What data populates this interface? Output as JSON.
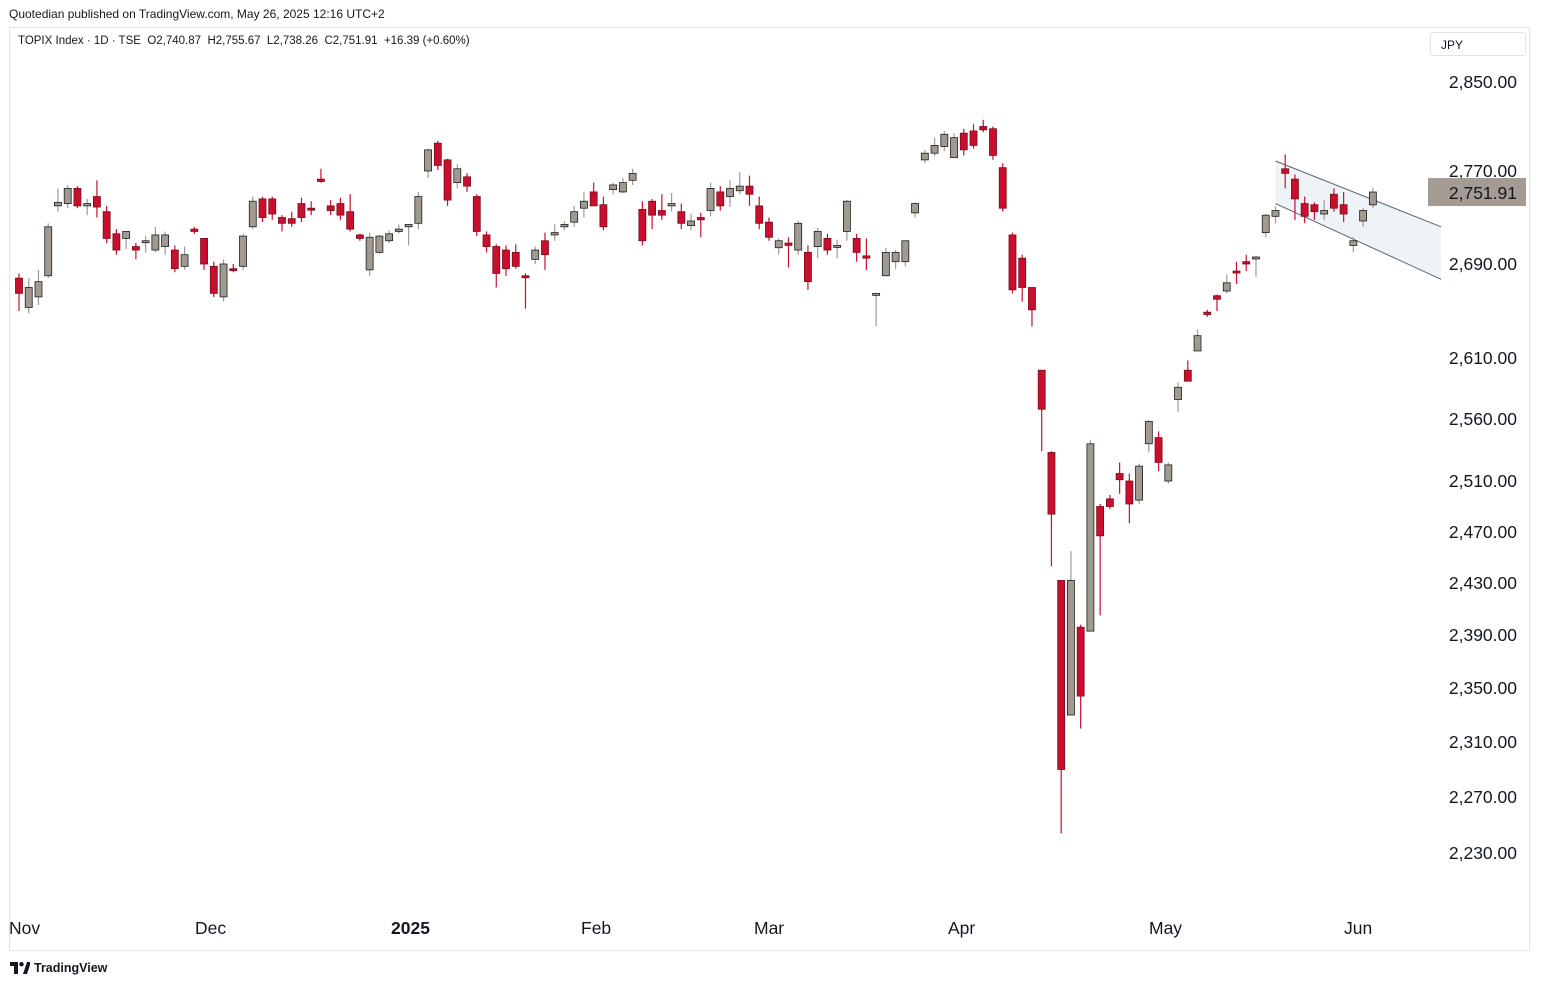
{
  "header": {
    "publisher_text": "Quotedian published on TradingView.com, May 26, 2025 12:16 UTC+2"
  },
  "legend": {
    "symbol": "TOPIX Index · 1D · TSE",
    "open": "O2,740.87",
    "high": "H2,755.67",
    "low": "L2,738.26",
    "close": "C2,751.91",
    "change": "+16.39 (+0.60%)"
  },
  "currency_button": "JPY",
  "footer": {
    "brand": "TradingView"
  },
  "colors": {
    "up": "#a09a91",
    "down": "#c8102e",
    "channel_fill": "#eef3f8",
    "channel_line": "#5d6470",
    "price_label_bg": "#a49b92"
  },
  "chart_data": {
    "type": "candlestick",
    "title": "TOPIX Index",
    "interval": "1D",
    "exchange": "TSE",
    "currency": "JPY",
    "y_axis": {
      "position": "right",
      "ticks": [
        2850,
        2770,
        2690,
        2610,
        2560,
        2510,
        2470,
        2430,
        2390,
        2350,
        2310,
        2270,
        2230
      ],
      "tick_labels": [
        "2,850.00",
        "2,770.00",
        "2,690.00",
        "2,610.00",
        "2,560.00",
        "2,510.00",
        "2,470.00",
        "2,430.00",
        "2,390.00",
        "2,350.00",
        "2,310.00",
        "2,270.00",
        "2,230.00"
      ],
      "last_price": 2751.91,
      "last_price_label": "2,751.91"
    },
    "x_axis": {
      "labels": [
        {
          "text": "Nov",
          "date": "2024-11-01",
          "bold": false
        },
        {
          "text": "Dec",
          "date": "2024-12-02",
          "bold": false
        },
        {
          "text": "2025",
          "date": "2025-01-06",
          "bold": true
        },
        {
          "text": "Feb",
          "date": "2025-02-03",
          "bold": false
        },
        {
          "text": "Mar",
          "date": "2025-03-03",
          "bold": false
        },
        {
          "text": "Apr",
          "date": "2025-04-01",
          "bold": false
        },
        {
          "text": "May",
          "date": "2025-05-01",
          "bold": false
        },
        {
          "text": "Jun",
          "date": "2025-06-02",
          "bold": false
        }
      ]
    },
    "candles": [
      {
        "date": "2024-11-01",
        "o": 2678,
        "h": 2682,
        "l": 2650,
        "c": 2665
      },
      {
        "date": "2024-11-05",
        "o": 2653,
        "h": 2678,
        "l": 2648,
        "c": 2670
      },
      {
        "date": "2024-11-06",
        "o": 2662,
        "h": 2685,
        "l": 2655,
        "c": 2675
      },
      {
        "date": "2024-11-07",
        "o": 2680,
        "h": 2725,
        "l": 2678,
        "c": 2722
      },
      {
        "date": "2024-11-08",
        "o": 2740,
        "h": 2755,
        "l": 2735,
        "c": 2743
      },
      {
        "date": "2024-11-11",
        "o": 2742,
        "h": 2758,
        "l": 2738,
        "c": 2755
      },
      {
        "date": "2024-11-12",
        "o": 2755,
        "h": 2757,
        "l": 2738,
        "c": 2740
      },
      {
        "date": "2024-11-13",
        "o": 2740,
        "h": 2746,
        "l": 2732,
        "c": 2742
      },
      {
        "date": "2024-11-14",
        "o": 2748,
        "h": 2762,
        "l": 2730,
        "c": 2739
      },
      {
        "date": "2024-11-15",
        "o": 2735,
        "h": 2740,
        "l": 2708,
        "c": 2712
      },
      {
        "date": "2024-11-18",
        "o": 2716,
        "h": 2720,
        "l": 2698,
        "c": 2702
      },
      {
        "date": "2024-11-19",
        "o": 2712,
        "h": 2718,
        "l": 2703,
        "c": 2718
      },
      {
        "date": "2024-11-20",
        "o": 2705,
        "h": 2708,
        "l": 2694,
        "c": 2702
      },
      {
        "date": "2024-11-21",
        "o": 2710,
        "h": 2714,
        "l": 2700,
        "c": 2710
      },
      {
        "date": "2024-11-22",
        "o": 2702,
        "h": 2722,
        "l": 2700,
        "c": 2715
      },
      {
        "date": "2024-11-25",
        "o": 2705,
        "h": 2718,
        "l": 2698,
        "c": 2715
      },
      {
        "date": "2024-11-26",
        "o": 2702,
        "h": 2706,
        "l": 2683,
        "c": 2686
      },
      {
        "date": "2024-11-27",
        "o": 2688,
        "h": 2705,
        "l": 2685,
        "c": 2698
      },
      {
        "date": "2024-11-28",
        "o": 2720,
        "h": 2722,
        "l": 2716,
        "c": 2718
      },
      {
        "date": "2024-11-29",
        "o": 2712,
        "h": 2712,
        "l": 2685,
        "c": 2690
      },
      {
        "date": "2024-12-02",
        "o": 2688,
        "h": 2692,
        "l": 2662,
        "c": 2665
      },
      {
        "date": "2024-12-03",
        "o": 2662,
        "h": 2694,
        "l": 2658,
        "c": 2690
      },
      {
        "date": "2024-12-04",
        "o": 2686,
        "h": 2690,
        "l": 2683,
        "c": 2685
      },
      {
        "date": "2024-12-05",
        "o": 2688,
        "h": 2716,
        "l": 2685,
        "c": 2714
      },
      {
        "date": "2024-12-06",
        "o": 2722,
        "h": 2748,
        "l": 2720,
        "c": 2744
      },
      {
        "date": "2024-12-09",
        "o": 2746,
        "h": 2748,
        "l": 2726,
        "c": 2730
      },
      {
        "date": "2024-12-10",
        "o": 2746,
        "h": 2748,
        "l": 2728,
        "c": 2733
      },
      {
        "date": "2024-12-11",
        "o": 2730,
        "h": 2732,
        "l": 2718,
        "c": 2725
      },
      {
        "date": "2024-12-12",
        "o": 2729,
        "h": 2735,
        "l": 2722,
        "c": 2725
      },
      {
        "date": "2024-12-13",
        "o": 2742,
        "h": 2747,
        "l": 2726,
        "c": 2730
      },
      {
        "date": "2024-12-16",
        "o": 2738,
        "h": 2744,
        "l": 2732,
        "c": 2737
      },
      {
        "date": "2024-12-17",
        "o": 2763,
        "h": 2772,
        "l": 2760,
        "c": 2761
      },
      {
        "date": "2024-12-18",
        "o": 2740,
        "h": 2745,
        "l": 2732,
        "c": 2736
      },
      {
        "date": "2024-12-19",
        "o": 2742,
        "h": 2747,
        "l": 2728,
        "c": 2732
      },
      {
        "date": "2024-12-20",
        "o": 2735,
        "h": 2750,
        "l": 2718,
        "c": 2720
      },
      {
        "date": "2024-12-23",
        "o": 2715,
        "h": 2716,
        "l": 2710,
        "c": 2712
      },
      {
        "date": "2024-12-24",
        "o": 2685,
        "h": 2717,
        "l": 2680,
        "c": 2713
      },
      {
        "date": "2024-12-25",
        "o": 2700,
        "h": 2715,
        "l": 2699,
        "c": 2714
      },
      {
        "date": "2024-12-26",
        "o": 2710,
        "h": 2719,
        "l": 2708,
        "c": 2716
      },
      {
        "date": "2024-12-27",
        "o": 2718,
        "h": 2724,
        "l": 2716,
        "c": 2720
      },
      {
        "date": "2024-12-30",
        "o": 2722,
        "h": 2724,
        "l": 2706,
        "c": 2724
      },
      {
        "date": "2025-01-06",
        "o": 2725,
        "h": 2752,
        "l": 2720,
        "c": 2748
      },
      {
        "date": "2025-01-07",
        "o": 2770,
        "h": 2790,
        "l": 2764,
        "c": 2789
      },
      {
        "date": "2025-01-08",
        "o": 2795,
        "h": 2797,
        "l": 2771,
        "c": 2775
      },
      {
        "date": "2025-01-09",
        "o": 2780,
        "h": 2781,
        "l": 2740,
        "c": 2745
      },
      {
        "date": "2025-01-10",
        "o": 2760,
        "h": 2776,
        "l": 2755,
        "c": 2772
      },
      {
        "date": "2025-01-14",
        "o": 2765,
        "h": 2768,
        "l": 2752,
        "c": 2757
      },
      {
        "date": "2025-01-15",
        "o": 2748,
        "h": 2750,
        "l": 2714,
        "c": 2718
      },
      {
        "date": "2025-01-16",
        "o": 2715,
        "h": 2718,
        "l": 2700,
        "c": 2705
      },
      {
        "date": "2025-01-17",
        "o": 2705,
        "h": 2707,
        "l": 2670,
        "c": 2682
      },
      {
        "date": "2025-01-20",
        "o": 2702,
        "h": 2706,
        "l": 2680,
        "c": 2686
      },
      {
        "date": "2025-01-21",
        "o": 2700,
        "h": 2707,
        "l": 2686,
        "c": 2688
      },
      {
        "date": "2025-01-22",
        "o": 2680,
        "h": 2682,
        "l": 2652,
        "c": 2679
      },
      {
        "date": "2025-01-23",
        "o": 2694,
        "h": 2705,
        "l": 2690,
        "c": 2702
      },
      {
        "date": "2025-01-24",
        "o": 2710,
        "h": 2717,
        "l": 2685,
        "c": 2698
      },
      {
        "date": "2025-01-27",
        "o": 2715,
        "h": 2724,
        "l": 2710,
        "c": 2717
      },
      {
        "date": "2025-01-28",
        "o": 2722,
        "h": 2727,
        "l": 2719,
        "c": 2724
      },
      {
        "date": "2025-01-29",
        "o": 2726,
        "h": 2740,
        "l": 2722,
        "c": 2735
      },
      {
        "date": "2025-01-30",
        "o": 2738,
        "h": 2752,
        "l": 2730,
        "c": 2744
      },
      {
        "date": "2025-01-31",
        "o": 2752,
        "h": 2760,
        "l": 2741,
        "c": 2740
      },
      {
        "date": "2025-02-03",
        "o": 2741,
        "h": 2748,
        "l": 2719,
        "c": 2722
      },
      {
        "date": "2025-02-04",
        "o": 2754,
        "h": 2760,
        "l": 2750,
        "c": 2758
      },
      {
        "date": "2025-02-05",
        "o": 2752,
        "h": 2764,
        "l": 2751,
        "c": 2760
      },
      {
        "date": "2025-02-06",
        "o": 2762,
        "h": 2772,
        "l": 2758,
        "c": 2768
      },
      {
        "date": "2025-02-07",
        "o": 2737,
        "h": 2744,
        "l": 2706,
        "c": 2710
      },
      {
        "date": "2025-02-10",
        "o": 2744,
        "h": 2746,
        "l": 2720,
        "c": 2732
      },
      {
        "date": "2025-02-12",
        "o": 2736,
        "h": 2750,
        "l": 2728,
        "c": 2732
      },
      {
        "date": "2025-02-13",
        "o": 2740,
        "h": 2751,
        "l": 2735,
        "c": 2742
      },
      {
        "date": "2025-02-14",
        "o": 2735,
        "h": 2742,
        "l": 2720,
        "c": 2725
      },
      {
        "date": "2025-02-17",
        "o": 2723,
        "h": 2733,
        "l": 2719,
        "c": 2727
      },
      {
        "date": "2025-02-18",
        "o": 2730,
        "h": 2734,
        "l": 2713,
        "c": 2728
      },
      {
        "date": "2025-02-19",
        "o": 2736,
        "h": 2760,
        "l": 2731,
        "c": 2755
      },
      {
        "date": "2025-02-20",
        "o": 2752,
        "h": 2757,
        "l": 2736,
        "c": 2740
      },
      {
        "date": "2025-02-21",
        "o": 2748,
        "h": 2762,
        "l": 2739,
        "c": 2755
      },
      {
        "date": "2025-02-25",
        "o": 2753,
        "h": 2769,
        "l": 2750,
        "c": 2757
      },
      {
        "date": "2025-02-26",
        "o": 2757,
        "h": 2766,
        "l": 2740,
        "c": 2750
      },
      {
        "date": "2025-02-27",
        "o": 2740,
        "h": 2748,
        "l": 2720,
        "c": 2725
      },
      {
        "date": "2025-02-28",
        "o": 2726,
        "h": 2730,
        "l": 2710,
        "c": 2713
      },
      {
        "date": "2025-03-03",
        "o": 2704,
        "h": 2712,
        "l": 2698,
        "c": 2710
      },
      {
        "date": "2025-03-04",
        "o": 2708,
        "h": 2713,
        "l": 2687,
        "c": 2706
      },
      {
        "date": "2025-03-05",
        "o": 2702,
        "h": 2727,
        "l": 2698,
        "c": 2725
      },
      {
        "date": "2025-03-06",
        "o": 2700,
        "h": 2706,
        "l": 2668,
        "c": 2675
      },
      {
        "date": "2025-03-07",
        "o": 2705,
        "h": 2721,
        "l": 2695,
        "c": 2718
      },
      {
        "date": "2025-03-10",
        "o": 2712,
        "h": 2716,
        "l": 2698,
        "c": 2702
      },
      {
        "date": "2025-03-11",
        "o": 2705,
        "h": 2711,
        "l": 2695,
        "c": 2706
      },
      {
        "date": "2025-03-12",
        "o": 2718,
        "h": 2745,
        "l": 2710,
        "c": 2744
      },
      {
        "date": "2025-03-13",
        "o": 2712,
        "h": 2716,
        "l": 2692,
        "c": 2700
      },
      {
        "date": "2025-03-14",
        "o": 2697,
        "h": 2712,
        "l": 2685,
        "c": 2695
      },
      {
        "date": "2025-03-17",
        "o": 2664,
        "h": 2663,
        "l": 2637,
        "c": 2665
      },
      {
        "date": "2025-03-18",
        "o": 2680,
        "h": 2704,
        "l": 2680,
        "c": 2700
      },
      {
        "date": "2025-03-19",
        "o": 2692,
        "h": 2702,
        "l": 2686,
        "c": 2700
      },
      {
        "date": "2025-03-21",
        "o": 2692,
        "h": 2710,
        "l": 2688,
        "c": 2710
      },
      {
        "date": "2025-03-24",
        "o": 2734,
        "h": 2743,
        "l": 2730,
        "c": 2742
      },
      {
        "date": "2025-03-25",
        "o": 2780,
        "h": 2789,
        "l": 2777,
        "c": 2786
      },
      {
        "date": "2025-03-26",
        "o": 2786,
        "h": 2800,
        "l": 2783,
        "c": 2793
      },
      {
        "date": "2025-03-27",
        "o": 2792,
        "h": 2806,
        "l": 2788,
        "c": 2803
      },
      {
        "date": "2025-03-28",
        "o": 2782,
        "h": 2804,
        "l": 2782,
        "c": 2800
      },
      {
        "date": "2025-03-31",
        "o": 2804,
        "h": 2808,
        "l": 2784,
        "c": 2789
      },
      {
        "date": "2025-04-01",
        "o": 2806,
        "h": 2812,
        "l": 2790,
        "c": 2793
      },
      {
        "date": "2025-04-02",
        "o": 2810,
        "h": 2816,
        "l": 2805,
        "c": 2807
      },
      {
        "date": "2025-04-03",
        "o": 2808,
        "h": 2810,
        "l": 2780,
        "c": 2784
      },
      {
        "date": "2025-04-04",
        "o": 2773,
        "h": 2777,
        "l": 2735,
        "c": 2738
      },
      {
        "date": "2025-04-07",
        "o": 2715,
        "h": 2717,
        "l": 2665,
        "c": 2668
      },
      {
        "date": "2025-04-08",
        "o": 2695,
        "h": 2698,
        "l": 2658,
        "c": 2670
      },
      {
        "date": "2025-04-09",
        "o": 2670,
        "h": 2669,
        "l": 2637,
        "c": 2651
      },
      {
        "date": "2025-04-10",
        "o": 2600,
        "h": 2600,
        "l": 2534,
        "c": 2568
      },
      {
        "date": "2025-04-11",
        "o": 2533,
        "h": 2534,
        "l": 2443,
        "c": 2484
      },
      {
        "date": "2025-04-14",
        "o": 2432,
        "h": 2432,
        "l": 2244,
        "c": 2290
      },
      {
        "date": "2025-04-15",
        "o": 2330,
        "h": 2455,
        "l": 2330,
        "c": 2432
      },
      {
        "date": "2025-04-16",
        "o": 2396,
        "h": 2398,
        "l": 2320,
        "c": 2344
      },
      {
        "date": "2025-04-17",
        "o": 2393,
        "h": 2543,
        "l": 2393,
        "c": 2540
      },
      {
        "date": "2025-04-18",
        "o": 2490,
        "h": 2492,
        "l": 2405,
        "c": 2467
      },
      {
        "date": "2025-04-21",
        "o": 2496,
        "h": 2499,
        "l": 2488,
        "c": 2490
      },
      {
        "date": "2025-04-22",
        "o": 2516,
        "h": 2525,
        "l": 2500,
        "c": 2511
      },
      {
        "date": "2025-04-23",
        "o": 2510,
        "h": 2516,
        "l": 2477,
        "c": 2492
      },
      {
        "date": "2025-04-24",
        "o": 2495,
        "h": 2524,
        "l": 2492,
        "c": 2522
      },
      {
        "date": "2025-04-25",
        "o": 2540,
        "h": 2559,
        "l": 2533,
        "c": 2558
      },
      {
        "date": "2025-04-28",
        "o": 2545,
        "h": 2550,
        "l": 2518,
        "c": 2525
      },
      {
        "date": "2025-04-30",
        "o": 2510,
        "h": 2525,
        "l": 2508,
        "c": 2523
      },
      {
        "date": "2025-05-01",
        "o": 2576,
        "h": 2590,
        "l": 2566,
        "c": 2586
      },
      {
        "date": "2025-05-02",
        "o": 2600,
        "h": 2608,
        "l": 2593,
        "c": 2591
      },
      {
        "date": "2025-05-07",
        "o": 2616,
        "h": 2634,
        "l": 2616,
        "c": 2629
      },
      {
        "date": "2025-05-08",
        "o": 2649,
        "h": 2651,
        "l": 2645,
        "c": 2647
      },
      {
        "date": "2025-05-09",
        "o": 2663,
        "h": 2664,
        "l": 2650,
        "c": 2660
      },
      {
        "date": "2025-05-12",
        "o": 2667,
        "h": 2681,
        "l": 2665,
        "c": 2674
      },
      {
        "date": "2025-05-13",
        "o": 2684,
        "h": 2692,
        "l": 2673,
        "c": 2683
      },
      {
        "date": "2025-05-14",
        "o": 2692,
        "h": 2698,
        "l": 2684,
        "c": 2690
      },
      {
        "date": "2025-05-15",
        "o": 2695,
        "h": 2697,
        "l": 2679,
        "c": 2696
      },
      {
        "date": "2025-05-16",
        "o": 2717,
        "h": 2733,
        "l": 2713,
        "c": 2732
      },
      {
        "date": "2025-05-19",
        "o": 2731,
        "h": 2740,
        "l": 2725,
        "c": 2736
      },
      {
        "date": "2025-05-20",
        "o": 2772,
        "h": 2785,
        "l": 2755,
        "c": 2768
      },
      {
        "date": "2025-05-21",
        "o": 2763,
        "h": 2767,
        "l": 2728,
        "c": 2746
      },
      {
        "date": "2025-05-22",
        "o": 2742,
        "h": 2748,
        "l": 2725,
        "c": 2731
      },
      {
        "date": "2025-05-23",
        "o": 2741,
        "h": 2743,
        "l": 2728,
        "c": 2735
      },
      {
        "date": "2025-05-23b",
        "o": 2733,
        "h": 2745,
        "l": 2728,
        "c": 2736
      },
      {
        "date": "2025-05-23c",
        "o": 2750,
        "h": 2755,
        "l": 2735,
        "c": 2738
      },
      {
        "date": "2025-05-23d",
        "o": 2741,
        "h": 2752,
        "l": 2726,
        "c": 2733
      },
      {
        "date": "2025-05-23e",
        "o": 2706,
        "h": 2713,
        "l": 2700,
        "c": 2710
      },
      {
        "date": "2025-05-23f",
        "o": 2727,
        "h": 2738,
        "l": 2722,
        "c": 2736
      },
      {
        "date": "2025-05-26",
        "o": 2740.87,
        "h": 2755.67,
        "l": 2738.26,
        "c": 2751.91
      }
    ],
    "channel": {
      "upper": {
        "from": {
          "date": "2025-05-19",
          "price": 2779
        },
        "to": {
          "date": "2025-06-05",
          "price": 2722
        }
      },
      "lower": {
        "from": {
          "date": "2025-05-19",
          "price": 2742
        },
        "to": {
          "date": "2025-06-05",
          "price": 2677
        }
      }
    }
  }
}
